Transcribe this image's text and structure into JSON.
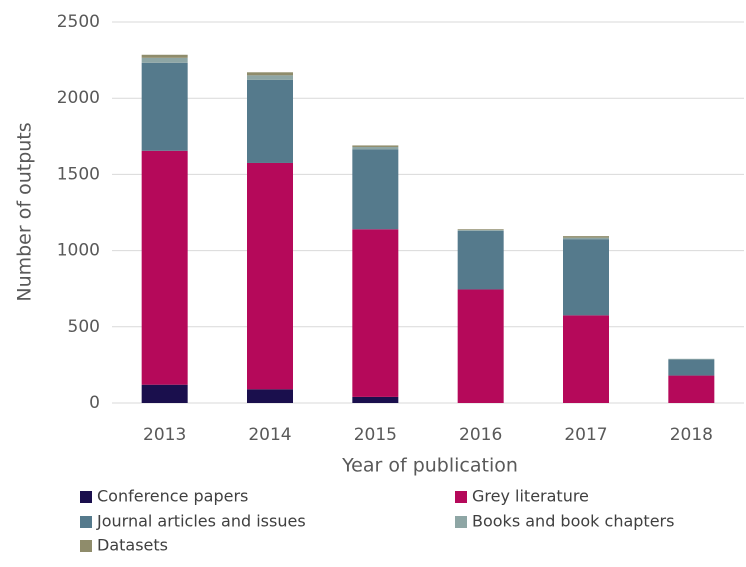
{
  "chart_data": {
    "type": "stacked_bar",
    "categories": [
      "2013",
      "2014",
      "2015",
      "2016",
      "2017",
      "2018"
    ],
    "series": [
      {
        "name": "Conference papers",
        "color": "#1a0f4d",
        "values": [
          120,
          90,
          40,
          0,
          0,
          0
        ]
      },
      {
        "name": "Grey literature",
        "color": "#b5095a",
        "values": [
          1535,
          1485,
          1100,
          745,
          575,
          180
        ]
      },
      {
        "name": "Journal articles and issues",
        "color": "#557a8c",
        "values": [
          577,
          545,
          525,
          385,
          500,
          105
        ]
      },
      {
        "name": "Books and book chapters",
        "color": "#8ea6a5",
        "values": [
          33,
          30,
          15,
          5,
          10,
          5
        ]
      },
      {
        "name": "Datasets",
        "color": "#8f8c6b",
        "values": [
          20,
          20,
          10,
          5,
          10,
          0
        ]
      }
    ],
    "ylim": [
      0,
      2500
    ],
    "yticks": [
      0,
      500,
      1000,
      1500,
      2000,
      2500
    ],
    "grid": true,
    "xlabel": "Year of publication",
    "ylabel": "Number of outputs",
    "legend": "bottom"
  }
}
